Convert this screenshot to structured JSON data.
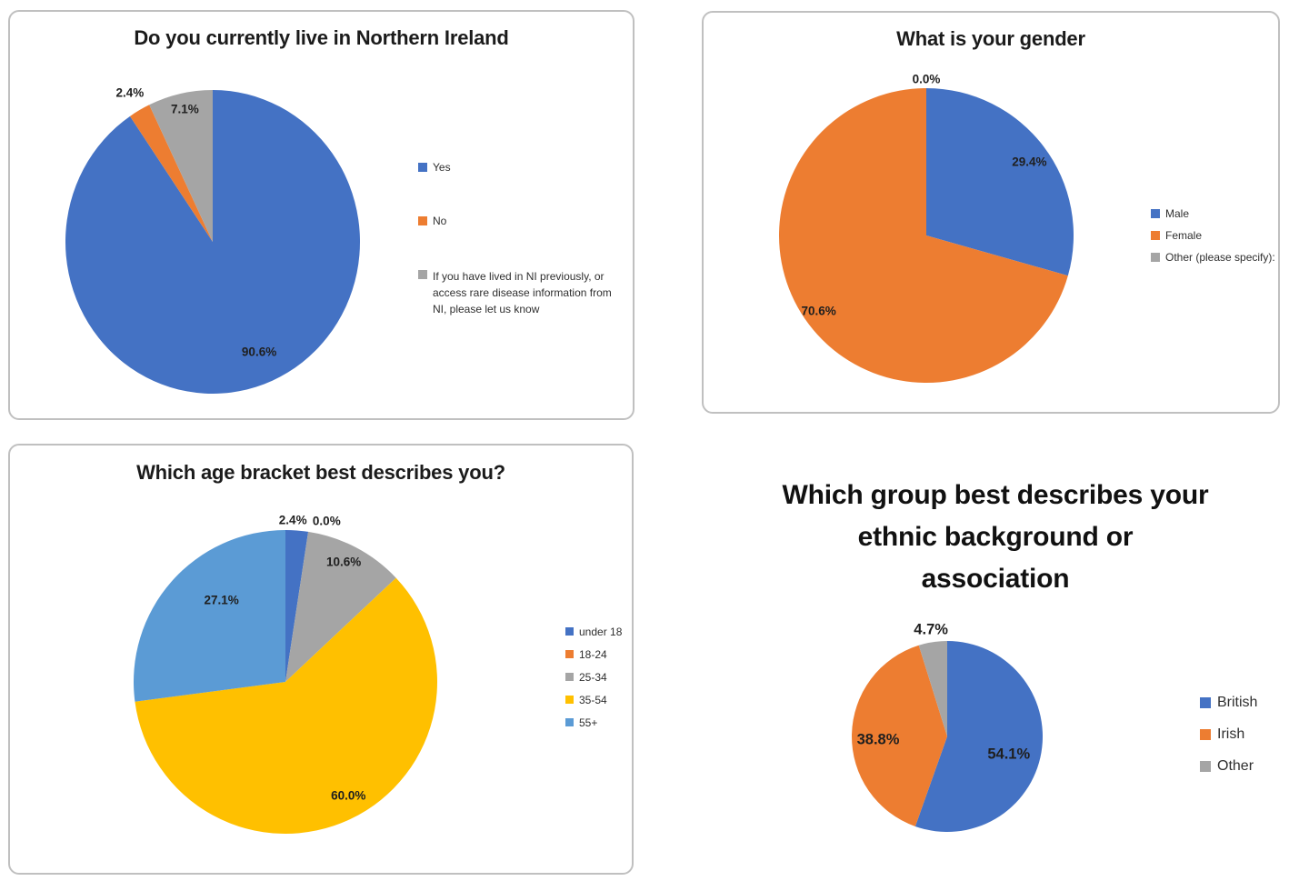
{
  "colors": {
    "blue": "#4472C4",
    "orange": "#ED7D31",
    "gray": "#A5A5A5",
    "yellow": "#FFC000",
    "light_blue": "#5B9BD5"
  },
  "chart_data": [
    {
      "type": "pie",
      "title": "Do you currently live in Northern Ireland",
      "legend_position": "right",
      "start_angle": "top",
      "direction": "clockwise",
      "series": [
        {
          "name": "Yes",
          "value": 90.6,
          "label": "90.6%",
          "color": "#4472C4"
        },
        {
          "name": "No",
          "value": 2.4,
          "label": "2.4%",
          "color": "#ED7D31"
        },
        {
          "name": "If you have lived in NI previously, or access rare disease information from NI, please let us know",
          "value": 7.1,
          "label": "7.1%",
          "color": "#A5A5A5"
        }
      ]
    },
    {
      "type": "pie",
      "title": "What is your gender",
      "legend_position": "right",
      "start_angle": "top",
      "direction": "clockwise",
      "series": [
        {
          "name": "Male",
          "value": 29.4,
          "label": "29.4%",
          "color": "#4472C4"
        },
        {
          "name": "Female",
          "value": 70.6,
          "label": "70.6%",
          "color": "#ED7D31"
        },
        {
          "name": "Other (please specify):",
          "value": 0.0,
          "label": "0.0%",
          "color": "#A5A5A5"
        }
      ]
    },
    {
      "type": "pie",
      "title": "Which age bracket best describes you?",
      "legend_position": "right",
      "start_angle": "top",
      "direction": "clockwise",
      "series": [
        {
          "name": "under 18",
          "value": 2.4,
          "label": "2.4%",
          "color": "#4472C4"
        },
        {
          "name": "18-24",
          "value": 0.0,
          "label": "0.0%",
          "color": "#ED7D31"
        },
        {
          "name": "25-34",
          "value": 10.6,
          "label": "10.6%",
          "color": "#A5A5A5"
        },
        {
          "name": "35-54",
          "value": 60.0,
          "label": "60.0%",
          "color": "#FFC000"
        },
        {
          "name": "55+",
          "value": 27.1,
          "label": "27.1%",
          "color": "#5B9BD5"
        }
      ]
    },
    {
      "type": "pie",
      "title": "Which group best describes your\nethnic background or\nassociation",
      "legend_position": "right",
      "start_angle": "top",
      "direction": "clockwise",
      "series": [
        {
          "name": "British",
          "value": 54.1,
          "label": "54.1%",
          "color": "#4472C4"
        },
        {
          "name": "Irish",
          "value": 38.8,
          "label": "38.8%",
          "color": "#ED7D31"
        },
        {
          "name": "Other",
          "value": 4.7,
          "label": "4.7%",
          "color": "#A5A5A5"
        }
      ]
    }
  ]
}
